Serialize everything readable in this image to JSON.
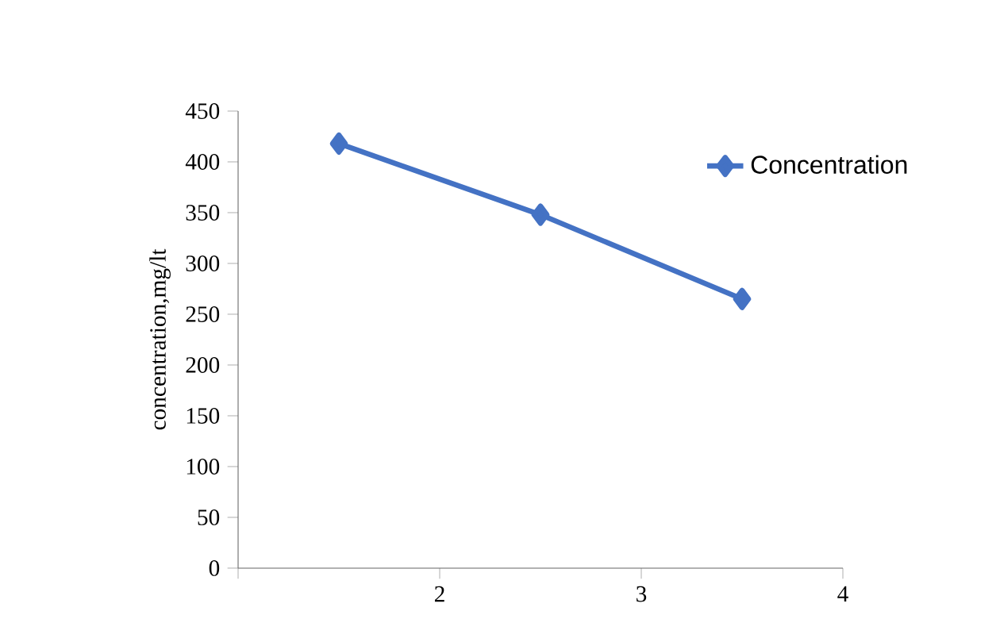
{
  "chart_data": {
    "type": "line",
    "ylabel": "concentration,mg/lt",
    "x": [
      1.5,
      2.5,
      3.5
    ],
    "series": [
      {
        "name": "Concentration",
        "color": "#4472c4",
        "values": [
          418,
          348,
          265
        ]
      }
    ],
    "xlim": [
      1,
      4
    ],
    "xticks": [
      {
        "value": 1,
        "label": null
      },
      2,
      3,
      4
    ],
    "ylim": [
      0,
      450
    ],
    "yticks": [
      0,
      50,
      100,
      150,
      200,
      250,
      300,
      350,
      400,
      450
    ],
    "marker": "diamond",
    "line_style": "solid",
    "legend": "right",
    "grid": false
  }
}
